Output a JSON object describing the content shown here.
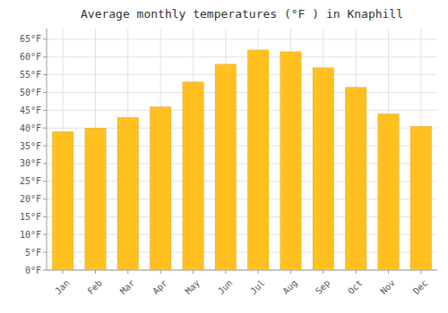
{
  "chart_data": {
    "type": "bar",
    "title": "Average monthly temperatures (°F ) in Knaphill",
    "categories": [
      "Jan",
      "Feb",
      "Mar",
      "Apr",
      "May",
      "Jun",
      "Jul",
      "Aug",
      "Sep",
      "Oct",
      "Nov",
      "Dec"
    ],
    "values": [
      39,
      40,
      43,
      46,
      53,
      58,
      62,
      61.5,
      57,
      51.5,
      44,
      40.5
    ],
    "color": "#FFC020",
    "ylim": [
      0,
      68
    ],
    "yticks": [
      {
        "value": 0,
        "label": "0°F"
      },
      {
        "value": 5,
        "label": "5°F"
      },
      {
        "value": 10,
        "label": "10°F"
      },
      {
        "value": 15,
        "label": "15°F"
      },
      {
        "value": 20,
        "label": "20°F"
      },
      {
        "value": 25,
        "label": "25°F"
      },
      {
        "value": 30,
        "label": "30°F"
      },
      {
        "value": 35,
        "label": "35°F"
      },
      {
        "value": 40,
        "label": "40°F"
      },
      {
        "value": 45,
        "label": "45°F"
      },
      {
        "value": 50,
        "label": "50°F"
      },
      {
        "value": 55,
        "label": "55°F"
      },
      {
        "value": 60,
        "label": "60°F"
      },
      {
        "value": 65,
        "label": "65°F"
      }
    ],
    "grid": true
  }
}
